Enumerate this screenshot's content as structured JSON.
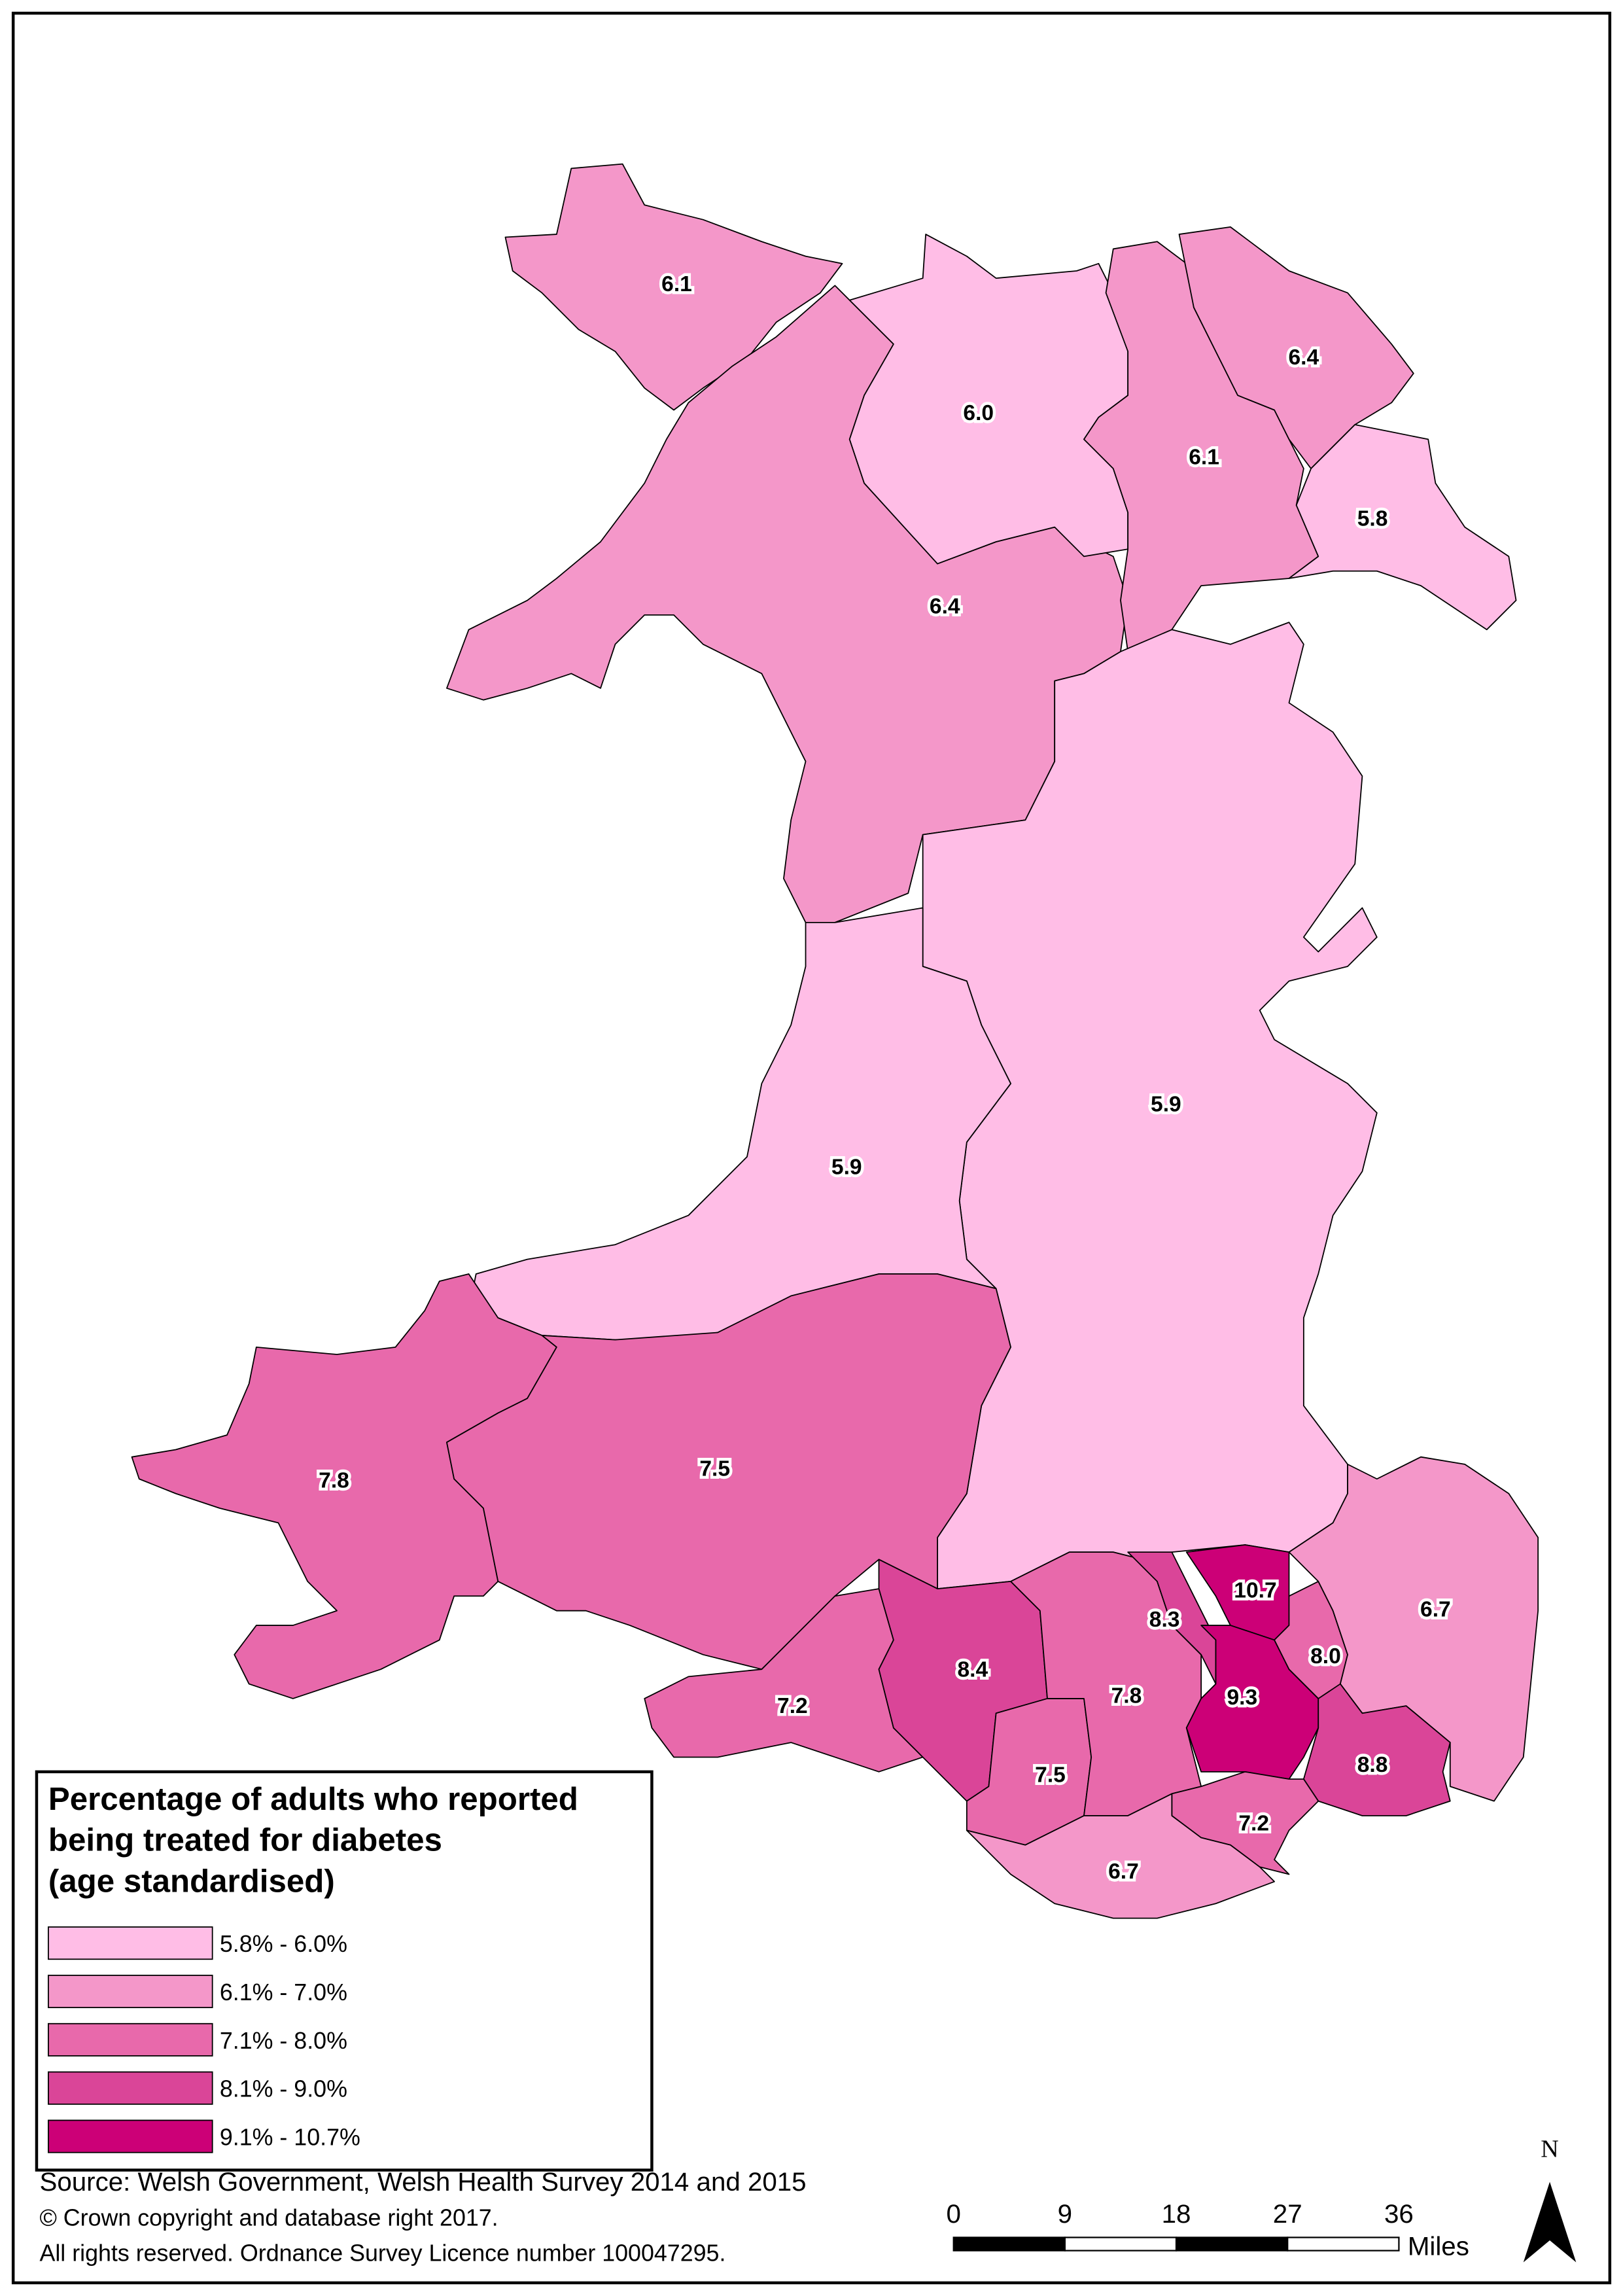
{
  "chart_data": {
    "type": "choropleth",
    "values": [
      6.1,
      6.4,
      6.0,
      6.1,
      6.4,
      5.8,
      5.9,
      5.9,
      7.8,
      7.5,
      7.2,
      8.4,
      7.5,
      7.8,
      8.3,
      10.7,
      9.3,
      8.0,
      6.7,
      8.8,
      7.2,
      6.7
    ],
    "value_labels": [
      "6.1",
      "6.4",
      "6.0",
      "6.1",
      "6.4",
      "5.8",
      "5.9",
      "5.9",
      "7.8",
      "7.5",
      "7.2",
      "8.4",
      "7.5",
      "7.8",
      "8.3",
      "10.7",
      "9.3",
      "8.0",
      "6.7",
      "8.8",
      "7.2",
      "6.7"
    ],
    "legend_title": [
      "Percentage of adults who reported",
      "being treated for diabetes",
      "(age standardised)"
    ],
    "legend": [
      {
        "label": "5.8% - 6.0%",
        "min": 5.8,
        "max": 6.0,
        "color": "#ffbde6"
      },
      {
        "label": "6.1% - 7.0%",
        "min": 6.1,
        "max": 7.0,
        "color": "#f497c9"
      },
      {
        "label": "7.1% - 8.0%",
        "min": 7.1,
        "max": 8.0,
        "color": "#e869ab"
      },
      {
        "label": "8.1% - 9.0%",
        "min": 8.1,
        "max": 9.0,
        "color": "#da4598"
      },
      {
        "label": "9.1% - 10.7%",
        "min": 9.1,
        "max": 10.7,
        "color": "#cc0077"
      }
    ],
    "source": [
      "Source: Welsh Government, Welsh Health Survey 2014 and 2015",
      "© Crown copyright and database right 2017.",
      "All rights reserved.  Ordnance Survey Licence number 100047295."
    ],
    "scale": {
      "ticks": [
        0,
        9,
        18,
        27,
        36
      ],
      "unit": "Miles"
    },
    "north": "N"
  }
}
